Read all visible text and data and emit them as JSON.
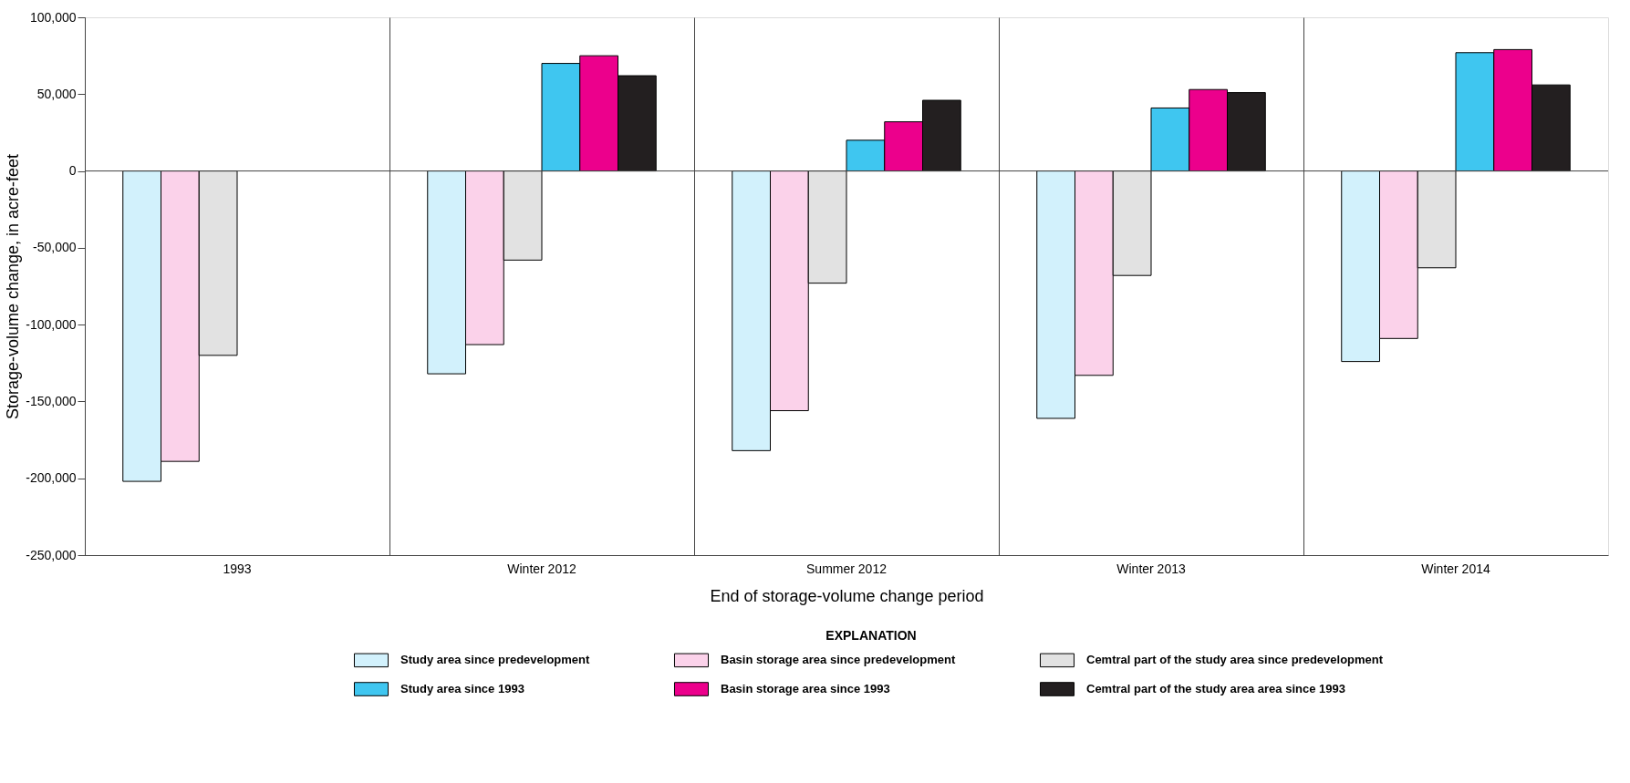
{
  "chart_data": {
    "type": "bar",
    "xlabel": "End of storage-volume change period",
    "ylabel": "Storage-volume change, in acre-feet",
    "legend_title": "EXPLANATION",
    "categories": [
      "1993",
      "Winter 2012",
      "Summer 2012",
      "Winter 2013",
      "Winter 2014"
    ],
    "series": [
      {
        "name": "Study area since predevelopment",
        "color": "#d2f1fc",
        "values": [
          -202000,
          -132000,
          -182000,
          -161000,
          -124000
        ]
      },
      {
        "name": "Basin storage area since predevelopment",
        "color": "#fbd2ea",
        "values": [
          -189000,
          -113000,
          -156000,
          -133000,
          -109000
        ]
      },
      {
        "name": "Cemtral part of the study area since predevelopment",
        "color": "#e2e2e2",
        "values": [
          -120000,
          -58000,
          -73000,
          -68000,
          -63000
        ]
      },
      {
        "name": "Study area since 1993",
        "color": "#3fc6f0",
        "values": [
          null,
          70000,
          20000,
          41000,
          77000
        ]
      },
      {
        "name": "Basin storage area since 1993",
        "color": "#ec008c",
        "values": [
          null,
          75000,
          32000,
          53000,
          79000
        ]
      },
      {
        "name": "Cemtral part of the study area area since 1993",
        "color": "#231f20",
        "values": [
          null,
          62000,
          46000,
          51000,
          56000
        ]
      }
    ],
    "ylim": [
      -250000,
      100000
    ],
    "yticks": [
      {
        "value": -250000,
        "label": "-250,000"
      },
      {
        "value": -200000,
        "label": "-200,000"
      },
      {
        "value": -150000,
        "label": "-150,000"
      },
      {
        "value": -100000,
        "label": "-100,000"
      },
      {
        "value": -50000,
        "label": "-50,000"
      },
      0,
      {
        "value": 50000,
        "label": "50,000"
      },
      {
        "value": 100000,
        "label": "100,000"
      }
    ],
    "grid": "x",
    "ref_lines": [
      {
        "axis": "y",
        "value": 0
      }
    ],
    "legend": "bottom"
  }
}
